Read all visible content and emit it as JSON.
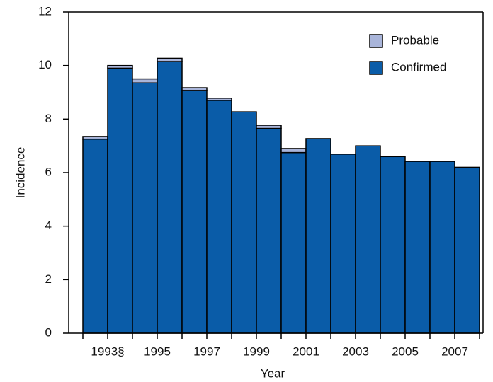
{
  "chart_data": {
    "type": "stacked-bar",
    "y_label": "Incidence",
    "x_label": "Year",
    "categories": [
      "1993§",
      null,
      "1995",
      null,
      "1997",
      null,
      "1999",
      null,
      "2001",
      null,
      "2003",
      null,
      "2005",
      null,
      "2007",
      null
    ],
    "series": [
      {
        "name": "Confirmed",
        "color": "#0a5ca8",
        "values": [
          7.25,
          9.9,
          9.35,
          10.15,
          9.07,
          8.7,
          8.27,
          7.65,
          6.75,
          7.27,
          6.69,
          7.0,
          6.6,
          6.42,
          6.42,
          6.2
        ]
      },
      {
        "name": "Probable",
        "color": "#a9b5da",
        "values": [
          0.1,
          0.1,
          0.15,
          0.12,
          0.1,
          0.08,
          0,
          0.12,
          0.15,
          0,
          0,
          0,
          0,
          0,
          0,
          0
        ]
      }
    ],
    "ylim": [
      0,
      12
    ],
    "yticks": [
      0,
      2,
      4,
      6,
      8,
      10,
      12
    ],
    "legend": "top-right"
  }
}
